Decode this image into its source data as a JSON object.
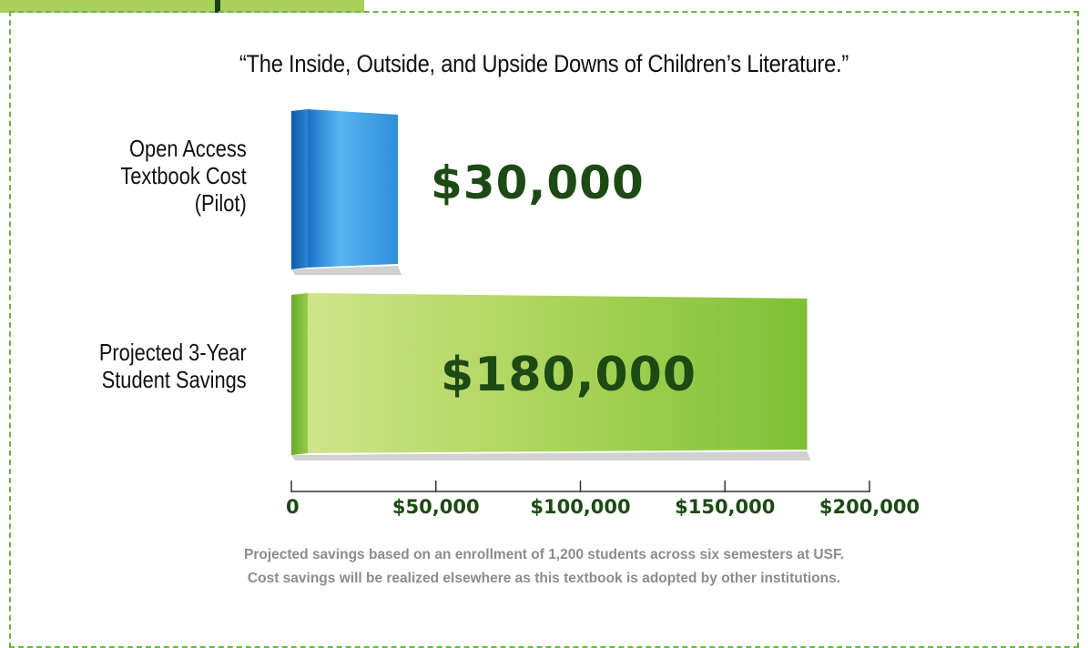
{
  "chart_data": {
    "type": "bar",
    "orientation": "horizontal",
    "title": "“The Inside, Outside, and Upside Downs of Children’s Literature.”",
    "categories": [
      "Open Access Textbook Cost (Pilot)",
      "Projected 3-Year Student Savings"
    ],
    "category_lines": [
      [
        "Open Access",
        "Textbook Cost",
        "(Pilot)"
      ],
      [
        "Projected 3-Year",
        "Student Savings"
      ]
    ],
    "values": [
      30000,
      180000
    ],
    "value_labels": [
      "$30,000",
      "$180,000"
    ],
    "xlim": [
      0,
      200000
    ],
    "x_ticks": [
      0,
      50000,
      100000,
      150000,
      200000
    ],
    "x_tick_labels": [
      "0",
      "$50,000",
      "$100,000",
      "$150,000",
      "$200,000"
    ],
    "grid": false,
    "colors": [
      "#2a8fd8",
      "#8cc63f"
    ]
  },
  "footnote": [
    "Projected savings based on an enrollment of 1,200 students across six semesters at USF.",
    "Cost savings will be realized elsewhere as this textbook is adopted by other institutions."
  ],
  "colors": {
    "frame": "#6db34a",
    "accent_green": "#a9d05a",
    "value_text": "#1d4a14",
    "footnote_text": "#8c8c8c"
  }
}
